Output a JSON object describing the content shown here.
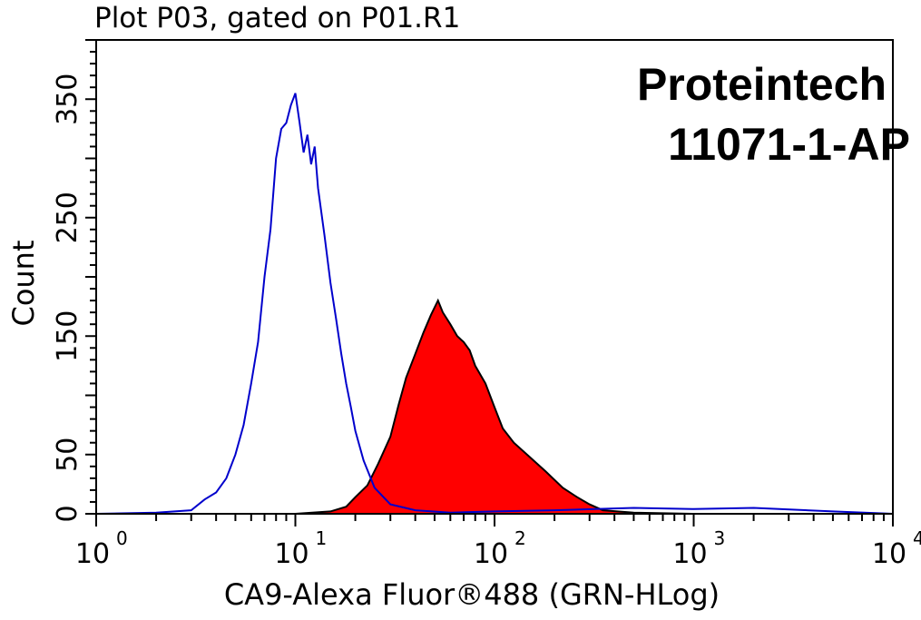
{
  "chart_data": {
    "type": "area",
    "title": "Plot P03, gated on P01.R1",
    "xlabel": "CA9-Alexa Fluor®488 (GRN-HLog)",
    "ylabel": "Count",
    "x_scale": "log",
    "xlim": [
      1,
      10000
    ],
    "ylim": [
      0,
      400
    ],
    "grid": false,
    "x_ticks": [
      {
        "base": "10",
        "exp": "0",
        "value": 1
      },
      {
        "base": "10",
        "exp": "1",
        "value": 10
      },
      {
        "base": "10",
        "exp": "2",
        "value": 100
      },
      {
        "base": "10",
        "exp": "3",
        "value": 1000
      },
      {
        "base": "10",
        "exp": "4",
        "value": 10000
      }
    ],
    "y_ticks": [
      {
        "label": "0",
        "value": 0
      },
      {
        "label": "50",
        "value": 50
      },
      {
        "label": "150",
        "value": 150
      },
      {
        "label": "250",
        "value": 250
      },
      {
        "label": "350",
        "value": 350
      }
    ],
    "annotations": [
      "Proteintech",
      "11071-1-AP"
    ],
    "series": [
      {
        "style": "outline",
        "color": "#0000cc",
        "x": [
          1,
          2,
          3,
          3.5,
          4,
          4.5,
          5,
          5.5,
          6,
          6.5,
          7,
          7.5,
          8,
          8.5,
          9,
          9.5,
          10,
          10.5,
          11,
          11.5,
          12,
          12.5,
          13,
          14,
          15,
          16,
          17,
          18,
          19,
          20,
          22,
          25,
          30,
          40,
          60,
          100,
          200,
          500,
          1000,
          2000,
          5000,
          10000
        ],
        "y": [
          0,
          1,
          3,
          12,
          18,
          30,
          50,
          75,
          110,
          145,
          200,
          240,
          300,
          325,
          330,
          345,
          355,
          330,
          305,
          320,
          295,
          310,
          275,
          235,
          195,
          165,
          135,
          110,
          90,
          70,
          45,
          22,
          8,
          3,
          1,
          2,
          3,
          5,
          4,
          5,
          2,
          0
        ]
      },
      {
        "style": "filled",
        "color": "#ff0000",
        "edge_color": "#000000",
        "x": [
          1,
          10,
          15,
          18,
          20,
          23,
          26,
          30,
          33,
          36,
          40,
          44,
          48,
          52,
          55,
          60,
          65,
          70,
          75,
          80,
          90,
          100,
          110,
          125,
          150,
          180,
          220,
          260,
          300,
          350,
          500,
          1000,
          10000
        ],
        "y": [
          0,
          0,
          2,
          6,
          14,
          24,
          42,
          65,
          92,
          115,
          135,
          153,
          168,
          180,
          170,
          160,
          150,
          145,
          138,
          125,
          110,
          90,
          72,
          60,
          48,
          36,
          22,
          14,
          8,
          3,
          1,
          0,
          0
        ]
      }
    ]
  }
}
